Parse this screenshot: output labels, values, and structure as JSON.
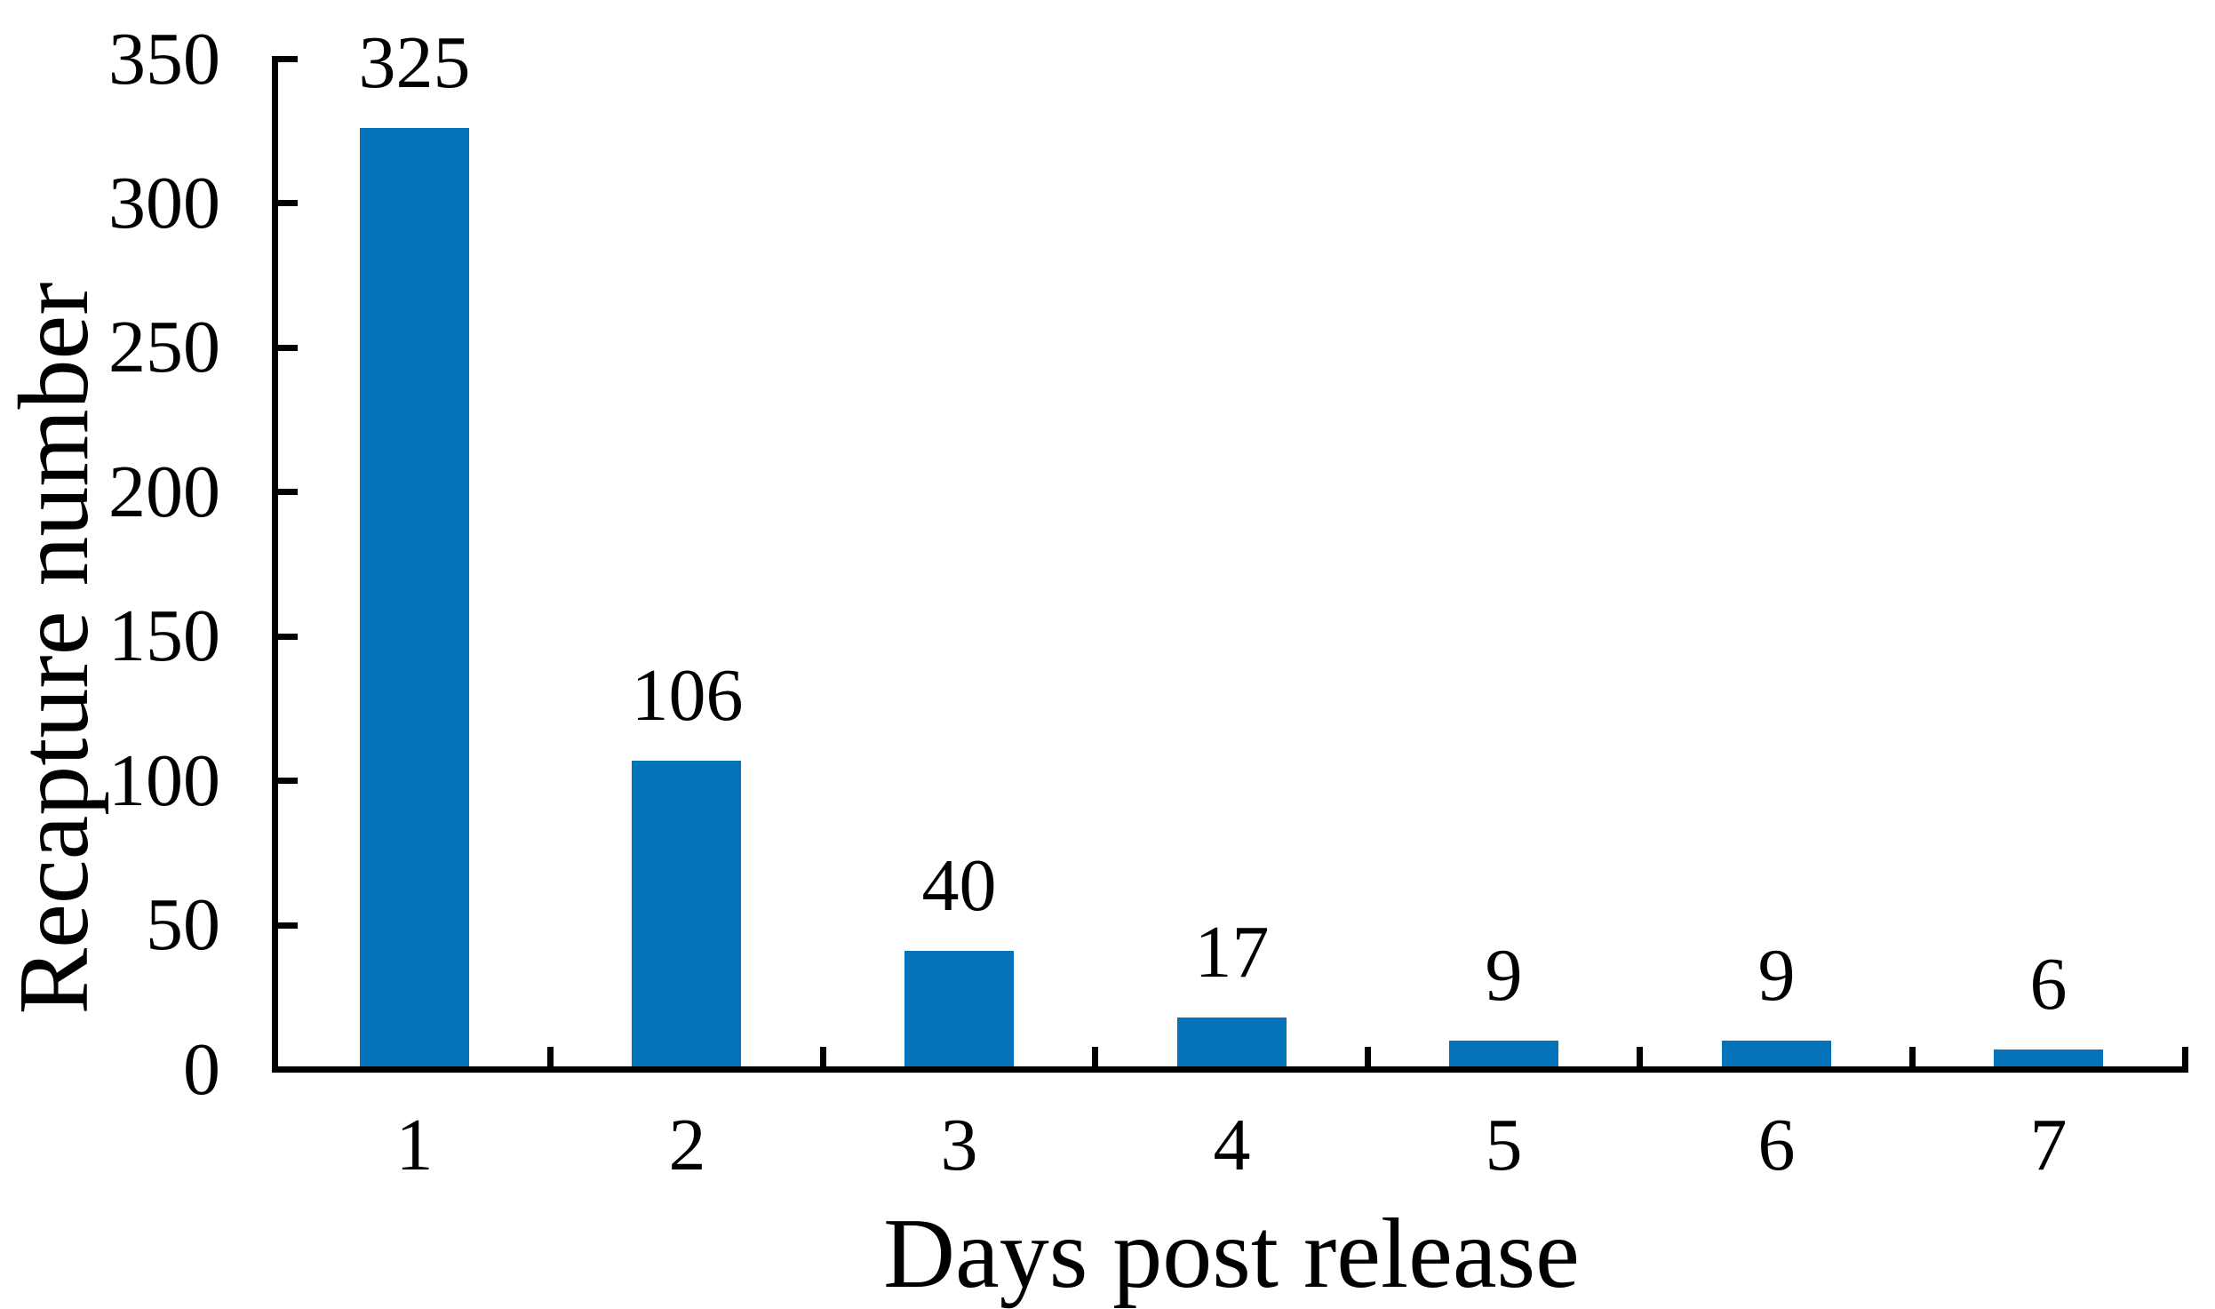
{
  "chart_data": {
    "type": "bar",
    "title": "",
    "xlabel": "Days post release",
    "ylabel": "Recapture number",
    "categories": [
      "1",
      "2",
      "3",
      "4",
      "5",
      "6",
      "7"
    ],
    "values": [
      325,
      106,
      40,
      17,
      9,
      9,
      6
    ],
    "data_labels": [
      "325",
      "106",
      "40",
      "17",
      "9",
      "9",
      "6"
    ],
    "ylim": [
      0,
      350
    ],
    "yticks": [
      0,
      50,
      100,
      150,
      200,
      250,
      300,
      350
    ],
    "grid": false,
    "legend": null,
    "tick_direction": "in",
    "x_tick_positions": "category-boundaries",
    "bar_gap_ratio": 0.6,
    "bar_color": "#0473B9",
    "axis_color": "#000000",
    "text_color": "#000000",
    "background_color": "#FFFFFF"
  }
}
